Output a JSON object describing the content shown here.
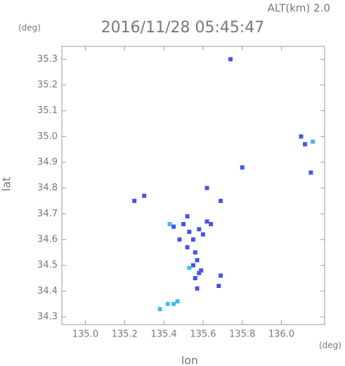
{
  "chart_data": {
    "type": "scatter",
    "title": "2016/11/28 05:45:47",
    "subtitle": "ALT(km) 2.0",
    "y_unit": "(deg)",
    "x_unit": "(deg)",
    "x_label": "lon",
    "y_label": "lat",
    "xlim": [
      134.88,
      136.22
    ],
    "ylim": [
      34.27,
      35.35
    ],
    "xticks": [
      {
        "value": 135,
        "label": "135.0"
      },
      135.2,
      135.4,
      135.6,
      135.8,
      {
        "value": 136,
        "label": "136.0"
      }
    ],
    "yticks": [
      34.3,
      34.4,
      34.5,
      34.6,
      34.7,
      34.8,
      34.9,
      {
        "value": 35,
        "label": "35.0"
      },
      35.1,
      35.2,
      35.3
    ],
    "series": [
      {
        "color": "#4455ee",
        "x": [
          135.74,
          136.1,
          136.12,
          136.15,
          135.25,
          135.3,
          135.8,
          135.62,
          135.69,
          135.45,
          135.5,
          135.52,
          135.53,
          135.55,
          135.58,
          135.6,
          135.62,
          135.64,
          135.56,
          135.57,
          135.55,
          135.58,
          135.56,
          135.59,
          135.57,
          135.69,
          135.68,
          135.52,
          135.48
        ],
        "y": [
          35.3,
          35.0,
          34.97,
          34.86,
          34.75,
          34.77,
          34.88,
          34.8,
          34.75,
          34.65,
          34.66,
          34.69,
          34.63,
          34.6,
          34.64,
          34.62,
          34.67,
          34.66,
          34.55,
          34.52,
          34.5,
          34.47,
          34.45,
          34.48,
          34.41,
          34.46,
          34.42,
          34.57,
          34.6
        ]
      },
      {
        "color": "#44bbee",
        "x": [
          136.16,
          135.42,
          135.45,
          135.47,
          135.38,
          135.53,
          135.43
        ],
        "y": [
          34.98,
          34.35,
          34.35,
          34.36,
          34.33,
          34.49,
          34.66
        ]
      }
    ]
  }
}
